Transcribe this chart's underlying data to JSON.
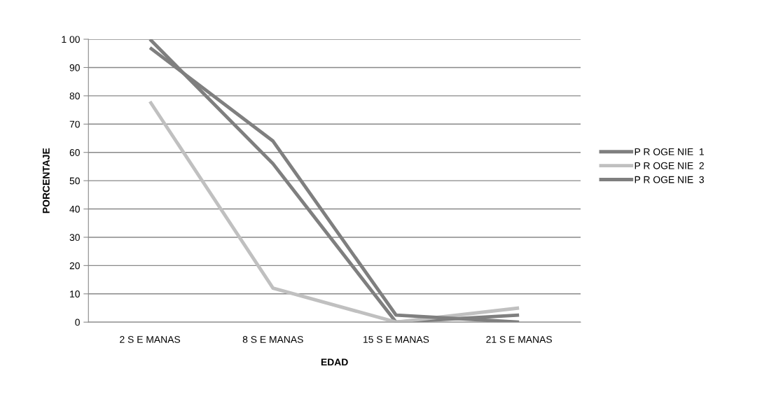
{
  "chart_data": {
    "type": "line",
    "xlabel": "EDAD",
    "ylabel": "PORCENTAJE",
    "categories": [
      "2 S E MANAS",
      "8 S E MANAS",
      "15 S E MANAS",
      "21 S E MANAS"
    ],
    "series": [
      {
        "name": "P R OGE NIE  1",
        "color": "#7f7f7f",
        "values": [
          100,
          56,
          0,
          2.5
        ]
      },
      {
        "name": "P R OGE NIE  2",
        "color": "#c0c0c0",
        "values": [
          78,
          12,
          0,
          5
        ]
      },
      {
        "name": "P R OGE NIE  3",
        "color": "#7f7f7f",
        "values": [
          97,
          64,
          2.5,
          0
        ]
      }
    ],
    "ylim": [
      0,
      100
    ],
    "yticks": [
      0,
      10,
      20,
      30,
      40,
      50,
      60,
      70,
      80,
      90,
      {
        "value": 100,
        "label": "1 00"
      }
    ],
    "grid": "y",
    "legend": "right",
    "marker": "none",
    "line_style": "solid"
  }
}
